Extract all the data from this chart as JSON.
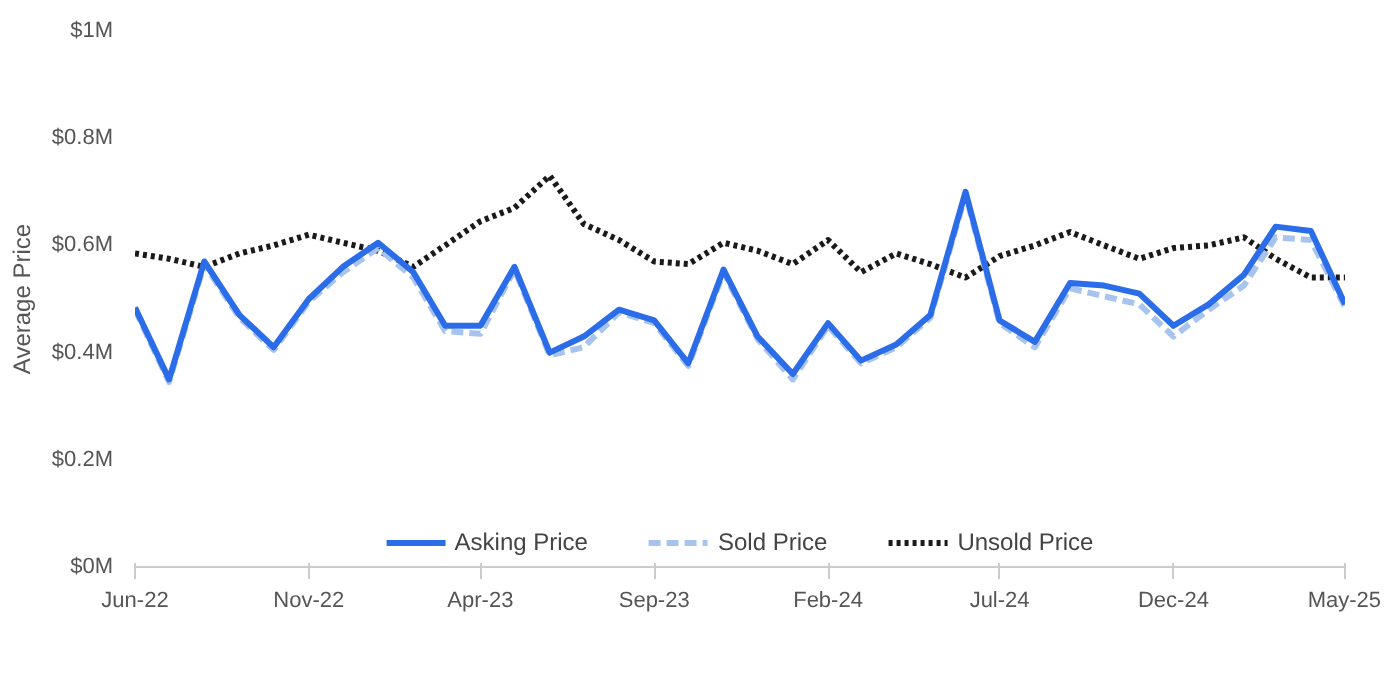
{
  "chart_data": {
    "type": "line",
    "ylabel": "Average Price",
    "x": [
      "2022-06",
      "2022-07",
      "2022-08",
      "2022-09",
      "2022-10",
      "2022-11",
      "2022-12",
      "2023-01",
      "2023-02",
      "2023-03",
      "2023-04",
      "2023-05",
      "2023-06",
      "2023-07",
      "2023-08",
      "2023-09",
      "2023-10",
      "2023-11",
      "2023-12",
      "2024-01",
      "2024-02",
      "2024-03",
      "2024-04",
      "2024-05",
      "2024-06",
      "2024-07",
      "2024-08",
      "2024-09",
      "2024-10",
      "2024-11",
      "2024-12",
      "2025-01",
      "2025-02",
      "2025-03",
      "2025-04",
      "2025-05"
    ],
    "series": [
      {
        "name": "Asking Price",
        "color": "#2b6de8",
        "line_style": "solid",
        "values": [
          0.484,
          0.35,
          0.57,
          0.47,
          0.41,
          0.5,
          0.56,
          0.605,
          0.55,
          0.45,
          0.45,
          0.56,
          0.4,
          0.43,
          0.48,
          0.46,
          0.38,
          0.555,
          0.43,
          0.36,
          0.455,
          0.385,
          0.415,
          0.47,
          0.7,
          0.46,
          0.42,
          0.53,
          0.525,
          0.51,
          0.45,
          0.49,
          0.545,
          0.635,
          0.627,
          0.49
        ]
      },
      {
        "name": "Sold Price",
        "color": "#a8c4ee",
        "line_style": "dashed",
        "values": [
          0.48,
          0.345,
          0.565,
          0.465,
          0.405,
          0.495,
          0.55,
          0.595,
          0.54,
          0.44,
          0.435,
          0.555,
          0.395,
          0.41,
          0.475,
          0.455,
          0.375,
          0.55,
          0.425,
          0.35,
          0.45,
          0.38,
          0.41,
          0.465,
          0.695,
          0.455,
          0.41,
          0.52,
          0.505,
          0.49,
          0.43,
          0.48,
          0.525,
          0.615,
          0.61,
          0.485
        ]
      },
      {
        "name": "Unsold Price",
        "color": "#1a1a1a",
        "line_style": "dotted",
        "values": [
          0.585,
          0.575,
          0.56,
          0.585,
          0.6,
          0.62,
          0.605,
          0.59,
          0.56,
          0.6,
          0.645,
          0.67,
          0.73,
          0.64,
          0.61,
          0.57,
          0.565,
          0.605,
          0.59,
          0.565,
          0.61,
          0.55,
          0.585,
          0.565,
          0.54,
          0.58,
          0.6,
          0.625,
          0.6,
          0.575,
          0.595,
          0.6,
          0.615,
          0.575,
          0.54,
          0.54
        ]
      }
    ],
    "xlim": [
      "2022-06",
      "2025-05"
    ],
    "xticks": [
      {
        "value": "2022-06",
        "label": "Jun-22"
      },
      {
        "value": "2022-11",
        "label": "Nov-22"
      },
      {
        "value": "2023-04",
        "label": "Apr-23"
      },
      {
        "value": "2023-09",
        "label": "Sep-23"
      },
      {
        "value": "2024-02",
        "label": "Feb-24"
      },
      {
        "value": "2024-07",
        "label": "Jul-24"
      },
      {
        "value": "2024-12",
        "label": "Dec-24"
      },
      {
        "value": "2025-05",
        "label": "May-25"
      }
    ],
    "ylim": [
      0,
      1
    ],
    "yticks": [
      {
        "value": 0,
        "label": "$0M"
      },
      {
        "value": 0.2,
        "label": "$0.2M"
      },
      {
        "value": 0.4,
        "label": "$0.4M"
      },
      {
        "value": 0.6,
        "label": "$0.6M"
      },
      {
        "value": 0.8,
        "label": "$0.8M"
      },
      {
        "value": 1,
        "label": "$1M"
      }
    ],
    "grid": false,
    "legend": "bottom"
  }
}
